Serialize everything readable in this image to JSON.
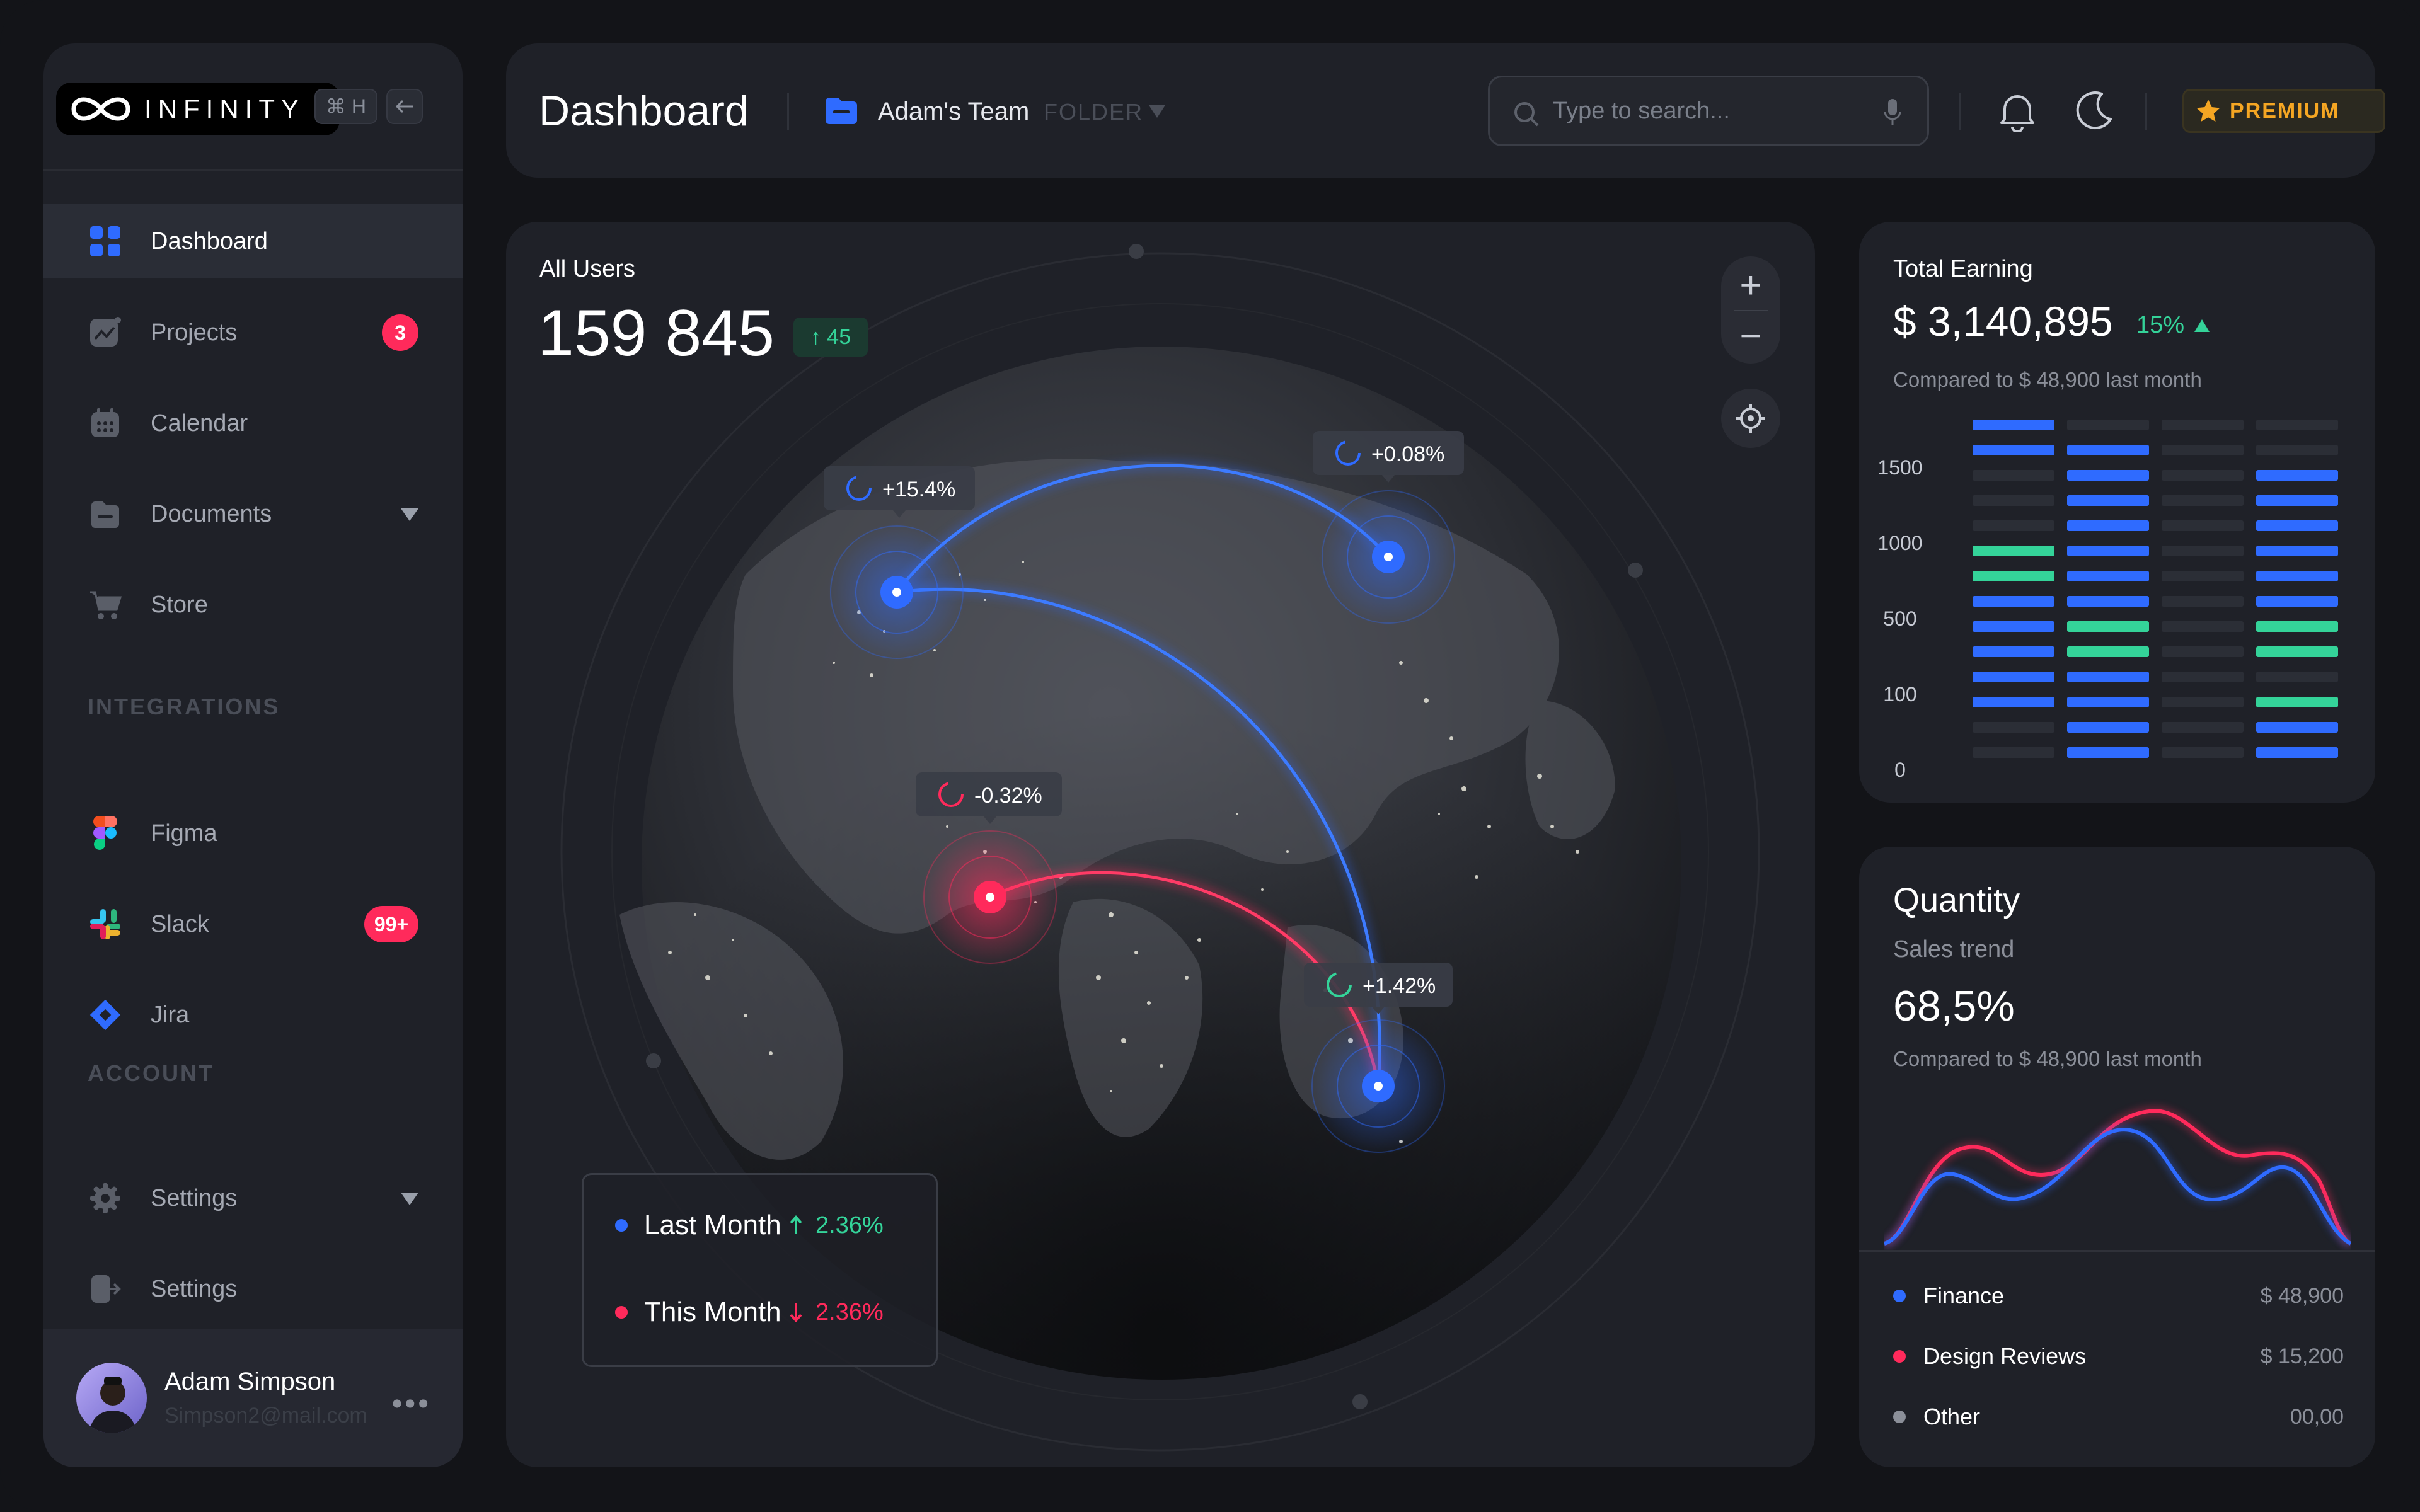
{
  "app": {
    "logo_text": "INFINITY",
    "shortcut_label": "⌘ H"
  },
  "sidebar": {
    "items": [
      {
        "label": "Dashboard",
        "icon": "grid-icon",
        "active": true
      },
      {
        "label": "Projects",
        "icon": "chart-icon",
        "badge": "3"
      },
      {
        "label": "Calendar",
        "icon": "calendar-icon"
      },
      {
        "label": "Documents",
        "icon": "folder-icon",
        "has_caret": true
      },
      {
        "label": "Store",
        "icon": "cart-icon"
      }
    ],
    "integrations_title": "INTEGRATIONS",
    "integrations": [
      {
        "label": "Figma",
        "icon": "figma-icon"
      },
      {
        "label": "Slack",
        "icon": "slack-icon",
        "badge": "99+"
      },
      {
        "label": "Jira",
        "icon": "jira-icon"
      }
    ],
    "account_title": "ACCOUNT",
    "account": [
      {
        "label": "Settings",
        "icon": "gear-icon",
        "has_caret": true
      },
      {
        "label": "Settings",
        "icon": "logout-icon"
      }
    ],
    "user": {
      "name": "Adam Simpson",
      "email": "Simpson2@mail.com"
    }
  },
  "header": {
    "title": "Dashboard",
    "team": "Adam's Team",
    "folder_label": "FOLDER",
    "search_placeholder": "Type to search...",
    "premium_label": "PREMIUM"
  },
  "globe": {
    "title": "All Users",
    "total": "159 845",
    "delta": "↑ 45",
    "markers": [
      {
        "label": "+15.4%",
        "color": "#2f6bff"
      },
      {
        "label": "+0.08%",
        "color": "#2f6bff"
      },
      {
        "label": "-0.32%",
        "color": "#ff2a5b"
      },
      {
        "label": "+1.42%",
        "color": "#34d399"
      }
    ],
    "legend": [
      {
        "label": "Last Month",
        "value": "2.36%",
        "direction": "up",
        "color": "#2f6bff",
        "value_color": "#34d399"
      },
      {
        "label": "This Month",
        "value": "2.36%",
        "direction": "down",
        "color": "#ff2a5b",
        "value_color": "#ff2a5b"
      }
    ]
  },
  "earning": {
    "title": "Total Earning",
    "amount": "$ 3,140,895",
    "change": "15%",
    "compare": "Compared to $ 48,900 last month"
  },
  "chart_data": {
    "type": "bar",
    "title": "Total Earning",
    "y_ticks": [
      "1500",
      "1000",
      "500",
      "100",
      "0"
    ],
    "columns": [
      [
        "blue",
        "blue",
        "dark",
        "dark",
        "dark",
        "green",
        "green",
        "blue",
        "blue",
        "blue",
        "blue",
        "blue",
        "dark",
        "dark"
      ],
      [
        "dark",
        "blue",
        "blue",
        "blue",
        "blue",
        "blue",
        "blue",
        "blue",
        "green",
        "green",
        "blue",
        "blue",
        "blue",
        "blue"
      ],
      [
        "dark",
        "dark",
        "dark",
        "dark",
        "dark",
        "dark",
        "dark",
        "dark",
        "dark",
        "dark",
        "dark",
        "dark",
        "dark",
        "dark"
      ],
      [
        "dark",
        "dark",
        "blue",
        "blue",
        "blue",
        "blue",
        "blue",
        "blue",
        "green",
        "green",
        "dark",
        "green",
        "blue",
        "blue"
      ]
    ]
  },
  "quantity": {
    "title": "Quantity",
    "subtitle": "Sales trend",
    "percent": "68,5%",
    "compare": "Compared to $ 48,900 last month",
    "list": [
      {
        "name": "Finance",
        "value": "$ 48,900",
        "color": "#2f6bff"
      },
      {
        "name": "Design Reviews",
        "value": "$ 15,200",
        "color": "#ff2a5b"
      },
      {
        "name": "Other",
        "value": "00,00",
        "color": "#8b8f99"
      }
    ]
  },
  "colors": {
    "blue": "#2f6bff",
    "red": "#ff2a5b",
    "green": "#34d399",
    "dark": "#2b2e36"
  }
}
